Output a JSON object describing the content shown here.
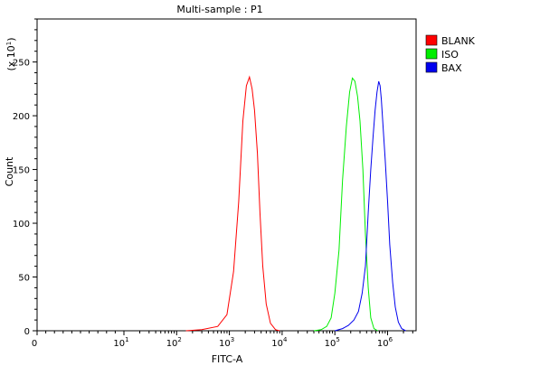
{
  "chart_data": {
    "type": "line",
    "title": "Multi-sample : P1",
    "xlabel": "FITC-A",
    "ylabel": "Count",
    "y_multiplier": "(x 10",
    "y_multiplier_exp": "1",
    "y_multiplier_close": ")",
    "x_scale": "log",
    "x_range": [
      0,
      6000000
    ],
    "y_range": [
      0,
      290
    ],
    "x_ticks": [
      {
        "value": 0,
        "base": "0",
        "exp": ""
      },
      {
        "value": 10,
        "base": "10",
        "exp": "1"
      },
      {
        "value": 100,
        "base": "10",
        "exp": "2"
      },
      {
        "value": 1000,
        "base": "10",
        "exp": "3"
      },
      {
        "value": 10000,
        "base": "10",
        "exp": "4"
      },
      {
        "value": 100000,
        "base": "10",
        "exp": "5"
      },
      {
        "value": 1000000,
        "base": "10",
        "exp": "6"
      }
    ],
    "y_ticks": [
      0,
      50,
      100,
      150,
      200,
      250
    ],
    "legend_position": "top-right",
    "series": [
      {
        "name": "BLANK",
        "color": "#ff0000",
        "points": [
          [
            150,
            0
          ],
          [
            300,
            1
          ],
          [
            600,
            4
          ],
          [
            900,
            15
          ],
          [
            1200,
            55
          ],
          [
            1500,
            120
          ],
          [
            1800,
            195
          ],
          [
            2100,
            228
          ],
          [
            2400,
            236
          ],
          [
            2700,
            225
          ],
          [
            3000,
            205
          ],
          [
            3400,
            165
          ],
          [
            3800,
            110
          ],
          [
            4300,
            60
          ],
          [
            5000,
            25
          ],
          [
            6000,
            7
          ],
          [
            7500,
            1
          ],
          [
            9000,
            0
          ]
        ]
      },
      {
        "name": "ISO",
        "color": "#00ee00",
        "points": [
          [
            40000,
            0
          ],
          [
            55000,
            1
          ],
          [
            70000,
            4
          ],
          [
            85000,
            12
          ],
          [
            100000,
            35
          ],
          [
            120000,
            75
          ],
          [
            140000,
            140
          ],
          [
            165000,
            190
          ],
          [
            190000,
            222
          ],
          [
            215000,
            235
          ],
          [
            240000,
            232
          ],
          [
            270000,
            218
          ],
          [
            300000,
            195
          ],
          [
            340000,
            150
          ],
          [
            380000,
            90
          ],
          [
            430000,
            40
          ],
          [
            480000,
            12
          ],
          [
            550000,
            2
          ],
          [
            650000,
            0
          ]
        ]
      },
      {
        "name": "BAX",
        "color": "#0000ee",
        "points": [
          [
            100000,
            0
          ],
          [
            140000,
            2
          ],
          [
            180000,
            5
          ],
          [
            230000,
            10
          ],
          [
            280000,
            18
          ],
          [
            330000,
            35
          ],
          [
            380000,
            60
          ],
          [
            430000,
            110
          ],
          [
            480000,
            150
          ],
          [
            530000,
            180
          ],
          [
            580000,
            205
          ],
          [
            630000,
            222
          ],
          [
            680000,
            232
          ],
          [
            720000,
            228
          ],
          [
            760000,
            215
          ],
          [
            820000,
            190
          ],
          [
            900000,
            160
          ],
          [
            1000000,
            120
          ],
          [
            1100000,
            80
          ],
          [
            1250000,
            45
          ],
          [
            1400000,
            22
          ],
          [
            1600000,
            8
          ],
          [
            1850000,
            2
          ],
          [
            2200000,
            0
          ]
        ]
      }
    ]
  }
}
